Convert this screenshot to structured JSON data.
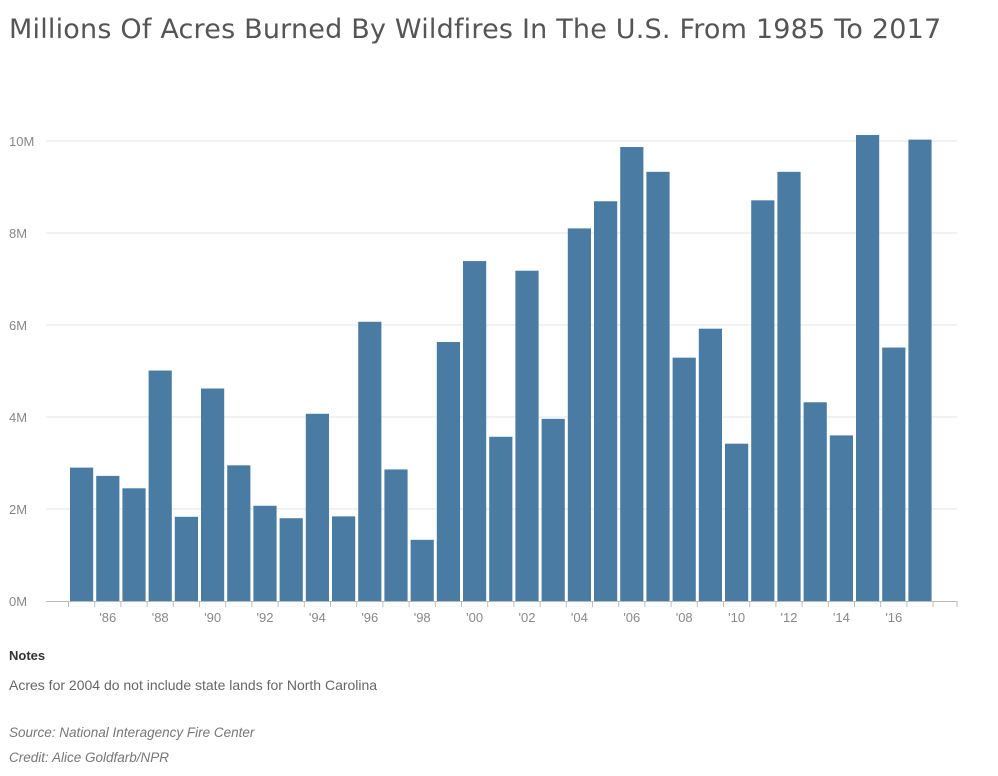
{
  "chart_data": {
    "type": "bar",
    "title": "Millions Of Acres Burned By Wildfires In The U.S. From 1985 To 2017",
    "xlabel": "",
    "ylabel": "",
    "ylim": [
      0,
      10
    ],
    "y_ticks": [
      {
        "value": 0,
        "label": "0M"
      },
      {
        "value": 2,
        "label": "2M"
      },
      {
        "value": 4,
        "label": "4M"
      },
      {
        "value": 6,
        "label": "6M"
      },
      {
        "value": 8,
        "label": "8M"
      },
      {
        "value": 10,
        "label": "10M"
      }
    ],
    "categories": [
      "1985",
      "1986",
      "1987",
      "1988",
      "1989",
      "1990",
      "1991",
      "1992",
      "1993",
      "1994",
      "1995",
      "1996",
      "1997",
      "1998",
      "1999",
      "2000",
      "2001",
      "2002",
      "2003",
      "2004",
      "2005",
      "2006",
      "2007",
      "2008",
      "2009",
      "2010",
      "2011",
      "2012",
      "2013",
      "2014",
      "2015",
      "2016",
      "2017"
    ],
    "category_labels": [
      "",
      "'86",
      "",
      "'88",
      "",
      "'90",
      "",
      "'92",
      "",
      "'94",
      "",
      "'96",
      "",
      "'98",
      "",
      "'00",
      "",
      "'02",
      "",
      "'04",
      "",
      "'06",
      "",
      "'08",
      "",
      "'10",
      "",
      "'12",
      "",
      "'14",
      "",
      "'16",
      ""
    ],
    "values": [
      2.9,
      2.72,
      2.45,
      5.01,
      1.83,
      4.62,
      2.95,
      2.07,
      1.8,
      4.07,
      1.84,
      6.07,
      2.86,
      1.33,
      5.63,
      7.39,
      3.57,
      7.18,
      3.96,
      8.1,
      8.69,
      9.87,
      9.33,
      5.29,
      5.92,
      3.42,
      8.71,
      9.33,
      4.32,
      3.6,
      10.13,
      5.51,
      10.03
    ],
    "grid": true,
    "bar_color": "#4a7ca3"
  },
  "notes": {
    "heading": "Notes",
    "text": "Acres for 2004 do not include state lands for North Carolina"
  },
  "source": "Source: National Interagency Fire Center",
  "credit": "Credit: Alice Goldfarb/NPR"
}
